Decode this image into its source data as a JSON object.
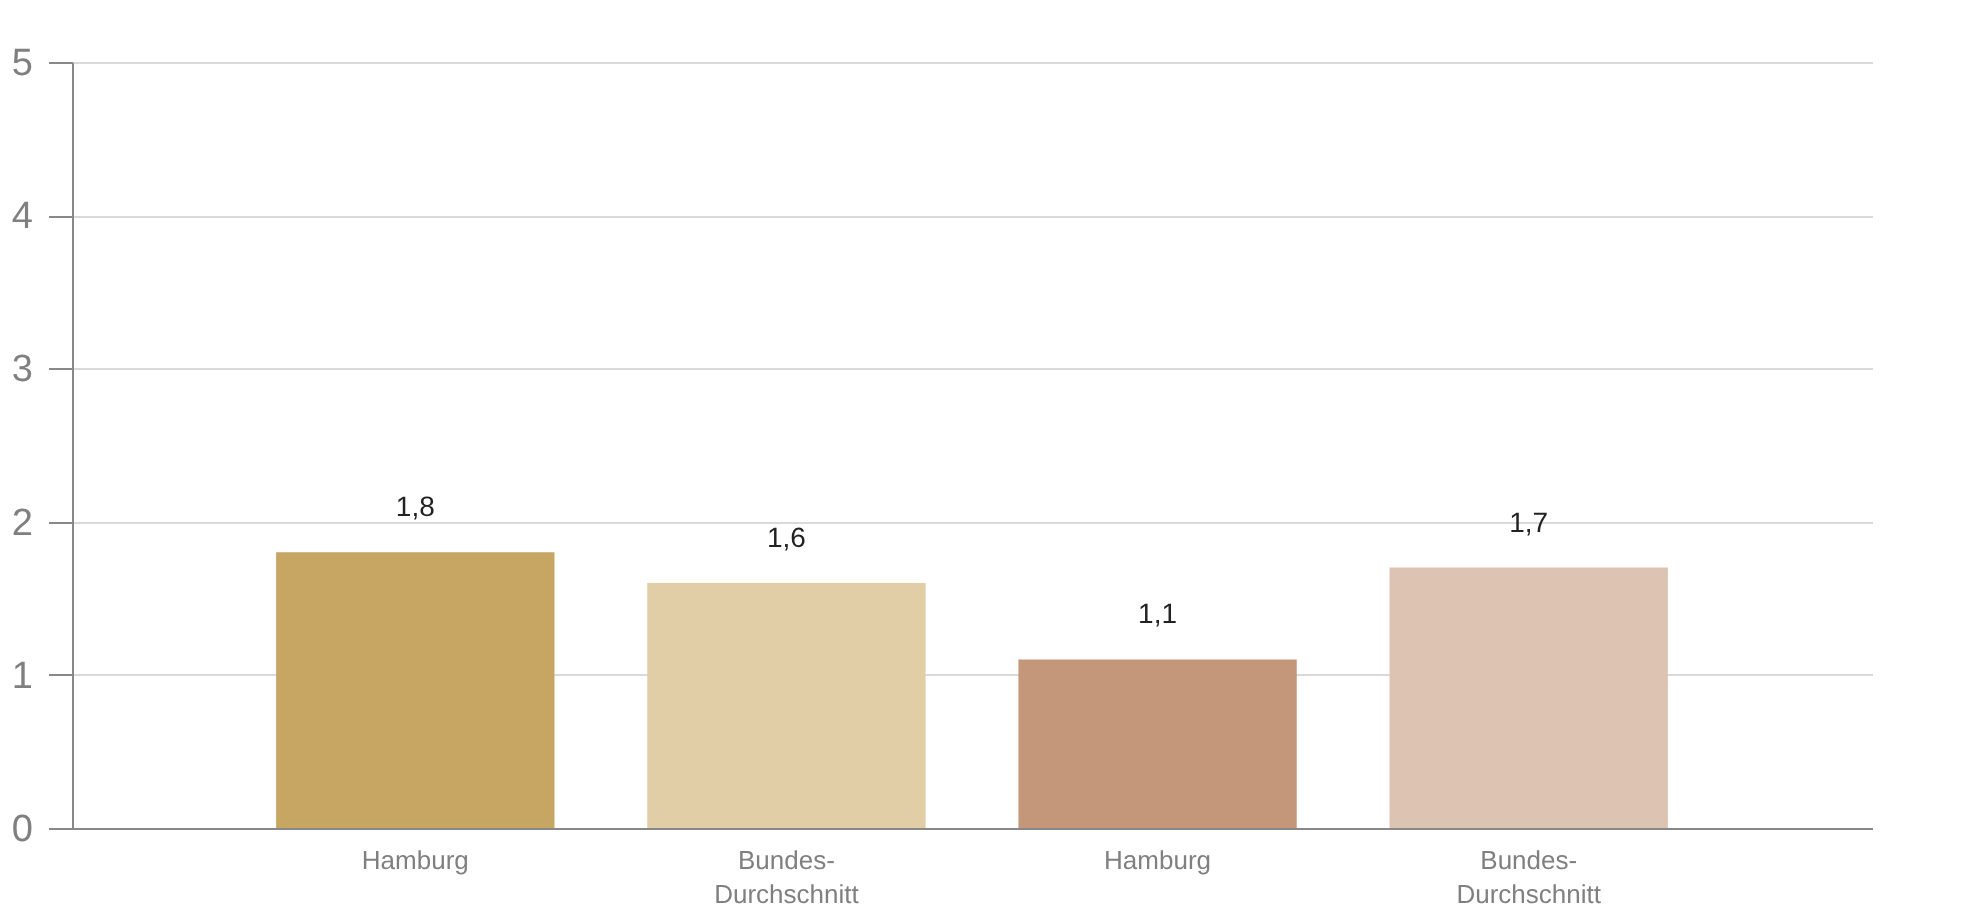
{
  "chart_data": {
    "type": "bar",
    "categories": [
      "Hamburg",
      "Bundes-Durchschnitt",
      "Hamburg",
      "Bundes-Durchschnitt"
    ],
    "values": [
      1.8,
      1.6,
      1.1,
      1.7
    ],
    "colors": [
      "#c7a562",
      "#e1cda6",
      "#c4977a",
      "#ddc3b1"
    ],
    "value_labels": [
      "1,8",
      "1,6",
      "1,1",
      "1,7"
    ],
    "ylim": [
      0,
      5
    ],
    "yticks": [
      0,
      1,
      2,
      3,
      4,
      5
    ],
    "grid": "y"
  }
}
